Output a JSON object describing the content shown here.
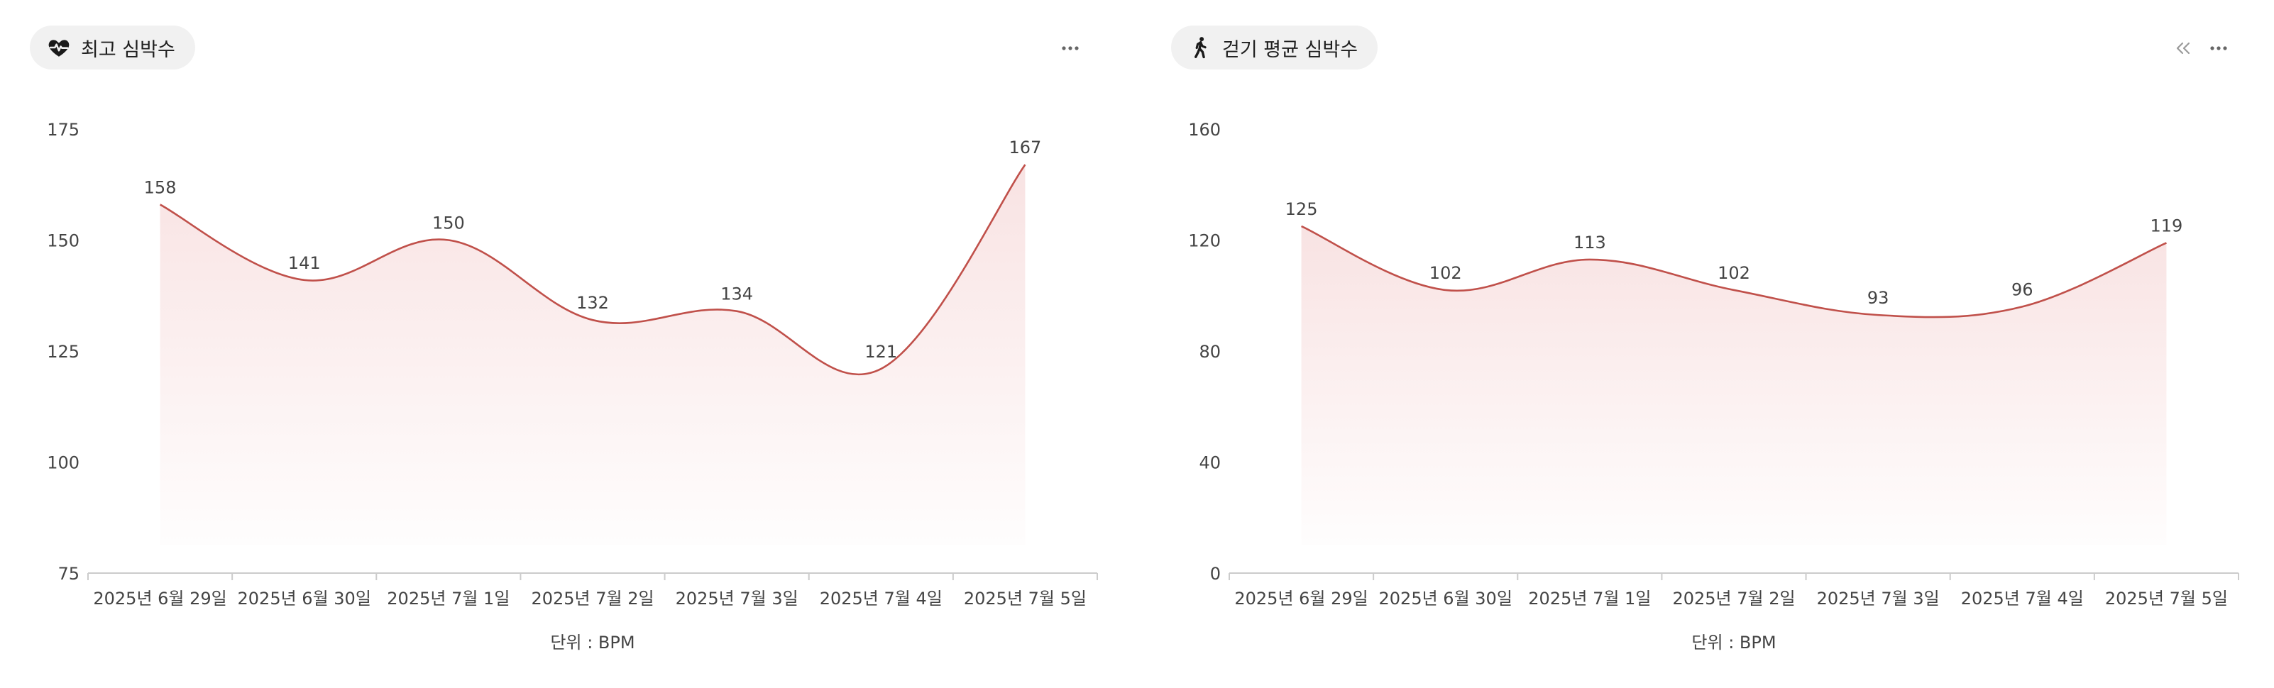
{
  "colors": {
    "line": "#c0504a",
    "area": "#f6d9d9",
    "axis": "#cccccc",
    "text": "#444444",
    "pill_bg": "#f1f1f1"
  },
  "panels": [
    {
      "title": "최고 심박수",
      "icon": "heart-pulse-icon",
      "menu_icon": "more-horizontal-icon",
      "collapse_icon": null,
      "unit_label": "단위 : BPM"
    },
    {
      "title": "걷기 평균 심박수",
      "icon": "walking-person-icon",
      "menu_icon": "more-horizontal-icon",
      "collapse_icon": "chevrons-left-icon",
      "unit_label": "단위 : BPM"
    }
  ],
  "chart_data": [
    {
      "type": "area",
      "title": "최고 심박수",
      "xlabel": "단위 : BPM",
      "ylabel": "",
      "categories": [
        "2025년 6월 29일",
        "2025년 6월 30일",
        "2025년 7월 1일",
        "2025년 7월 2일",
        "2025년 7월 3일",
        "2025년 7월 4일",
        "2025년 7월 5일"
      ],
      "values": [
        158,
        141,
        150,
        132,
        134,
        121,
        167
      ],
      "ylim": [
        75,
        175
      ],
      "yticks": [
        75,
        100,
        125,
        150,
        175
      ],
      "grid": false,
      "smooth": true
    },
    {
      "type": "area",
      "title": "걷기 평균 심박수",
      "xlabel": "단위 : BPM",
      "ylabel": "",
      "categories": [
        "2025년 6월 29일",
        "2025년 6월 30일",
        "2025년 7월 1일",
        "2025년 7월 2일",
        "2025년 7월 3일",
        "2025년 7월 4일",
        "2025년 7월 5일"
      ],
      "values": [
        125,
        102,
        113,
        102,
        93,
        96,
        119
      ],
      "ylim": [
        0,
        160
      ],
      "yticks": [
        0,
        40,
        80,
        120,
        160
      ],
      "grid": false,
      "smooth": true
    }
  ]
}
